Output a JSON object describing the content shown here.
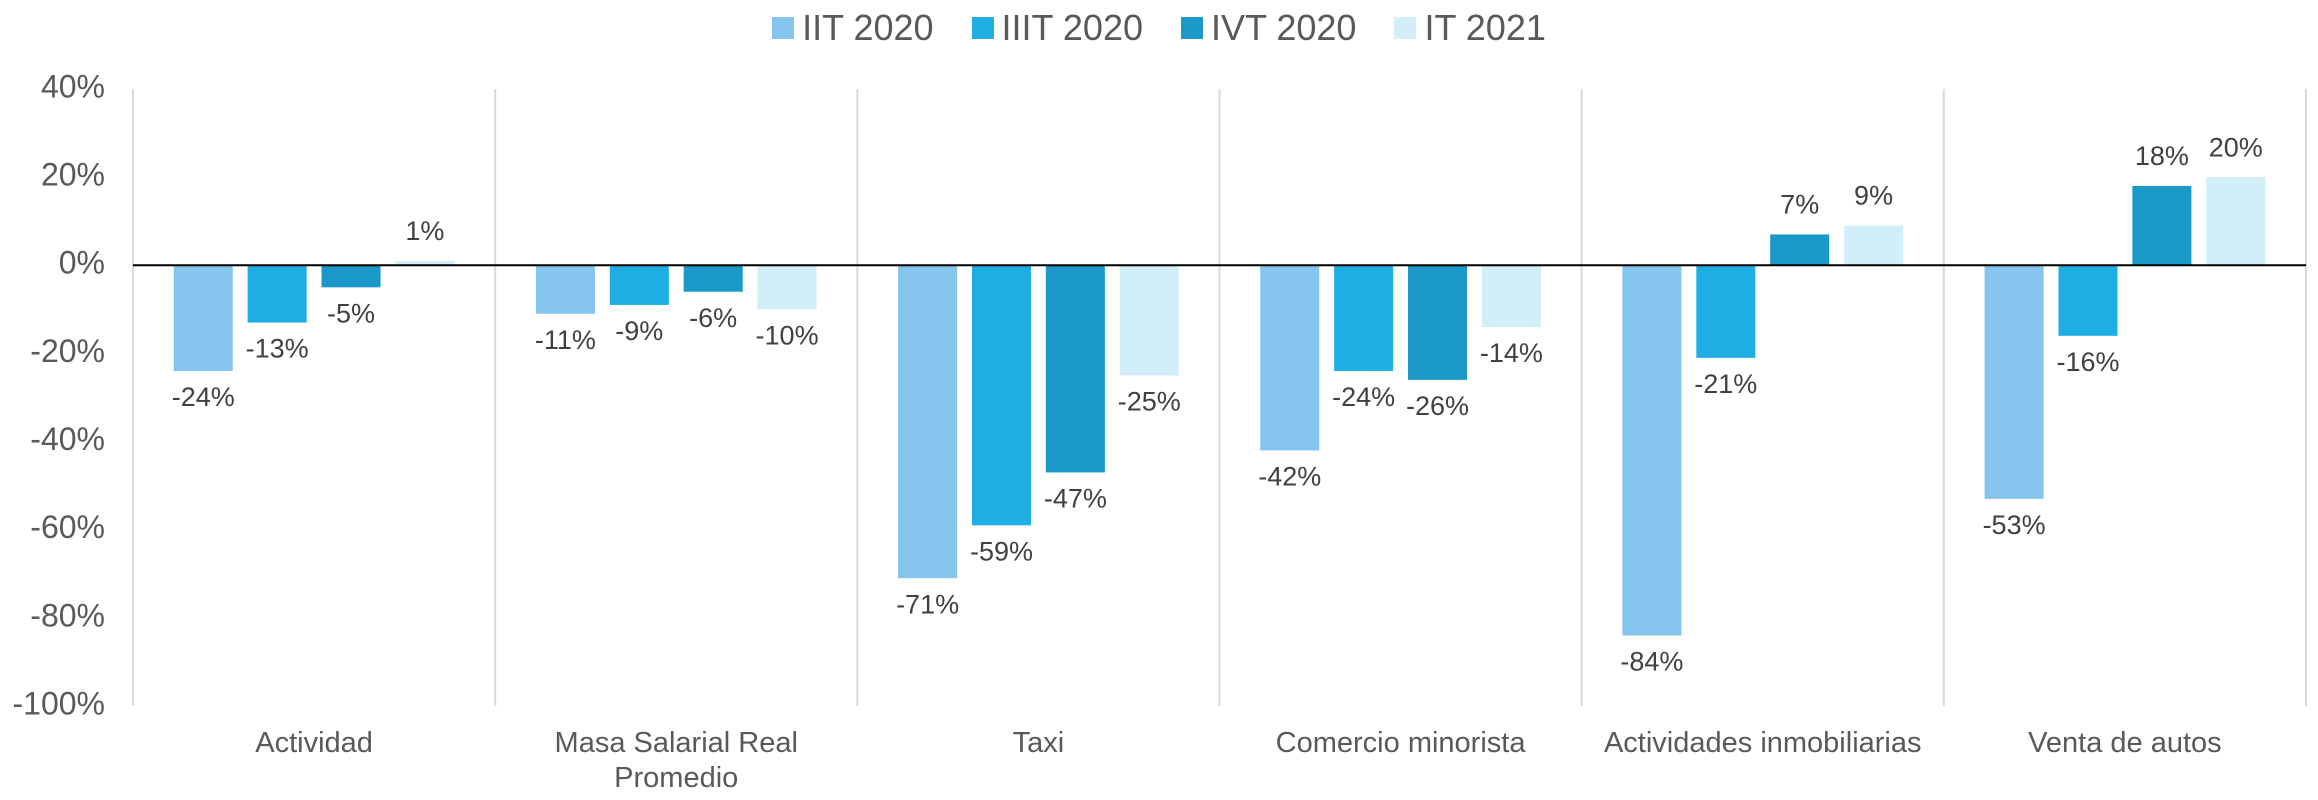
{
  "chart_data": {
    "type": "bar",
    "categories": [
      "Actividad",
      "Masa Salarial Real Promedio",
      "Taxi",
      "Comercio minorista",
      "Actividades inmobiliarias",
      "Venta de autos"
    ],
    "series": [
      {
        "name": "IIT 2020",
        "color": "#85c4ec",
        "values": [
          -24,
          -11,
          -71,
          -42,
          -84,
          -53
        ],
        "value_labels": [
          "-24%",
          "-11%",
          "-71%",
          "-42%",
          "-84%",
          "-53%"
        ]
      },
      {
        "name": "IIIT 2020",
        "color": "#1eaee4",
        "values": [
          -13,
          -9,
          -59,
          -24,
          -21,
          -16
        ],
        "value_labels": [
          "-13%",
          "-9%",
          "-59%",
          "-24%",
          "-21%",
          "-16%"
        ]
      },
      {
        "name": "IVT 2020",
        "color": "#1a98c8",
        "values": [
          -5,
          -6,
          -47,
          -26,
          7,
          18
        ],
        "value_labels": [
          "-5%",
          "-6%",
          "-47%",
          "-26%",
          "7%",
          "18%"
        ]
      },
      {
        "name": "IT 2021",
        "color": "#d1eef9",
        "values": [
          1,
          -10,
          -25,
          -14,
          9,
          20
        ],
        "value_labels": [
          "1%",
          "-10%",
          "-25%",
          "-14%",
          "9%",
          "20%"
        ]
      }
    ],
    "ylim": [
      -100,
      40
    ],
    "yticks": [
      {
        "value": -100,
        "label": "-100%"
      },
      {
        "value": -80,
        "label": "-80%"
      },
      {
        "value": -60,
        "label": "-60%"
      },
      {
        "value": -40,
        "label": "-40%"
      },
      {
        "value": -20,
        "label": "-20%"
      },
      {
        "value": 0,
        "label": "0%"
      },
      {
        "value": 20,
        "label": "20%"
      },
      {
        "value": 40,
        "label": "40%"
      }
    ],
    "legend": "top"
  }
}
